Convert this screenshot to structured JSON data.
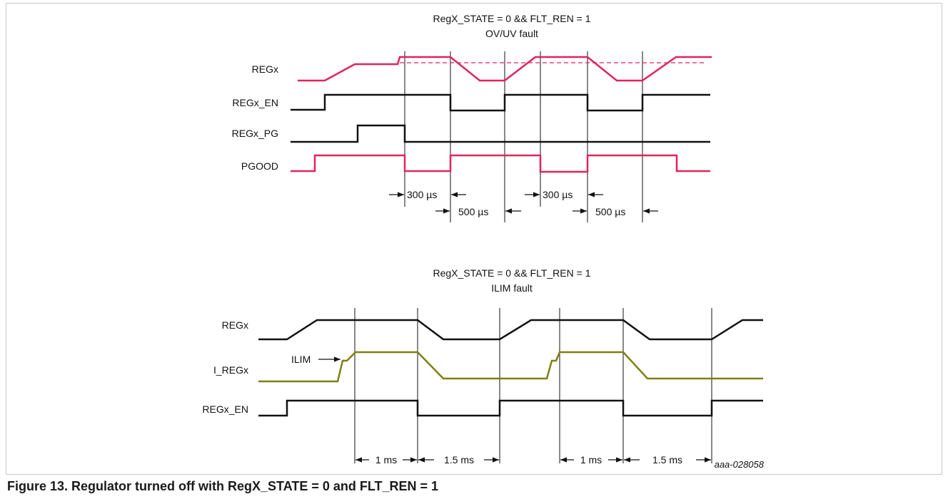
{
  "colors": {
    "fault_signal": "#e0245e",
    "logic_signal": "#111111",
    "current_signal": "#7f7f16",
    "frame": "#c8c8c8"
  },
  "top": {
    "title": "RegX_STATE = 0 && FLT_REN = 1",
    "subtitle": "OV/UV fault",
    "signals": [
      "REGx",
      "REGx_EN",
      "REGx_PG",
      "PGOOD"
    ],
    "intervals": [
      "300 µs",
      "500 µs",
      "300 µs",
      "500 µs"
    ]
  },
  "bottom": {
    "title": "RegX_STATE = 0 && FLT_REN = 1",
    "subtitle": "ILIM fault",
    "signals": [
      "REGx",
      "I_REGx",
      "REGx_EN"
    ],
    "ilim_label": "ILIM",
    "intervals": [
      "1 ms",
      "1.5 ms",
      "1 ms",
      "1.5 ms"
    ]
  },
  "reference": "aaa-028058",
  "caption": "Figure 13.  Regulator turned off with RegX_STATE = 0 and FLT_REN = 1"
}
